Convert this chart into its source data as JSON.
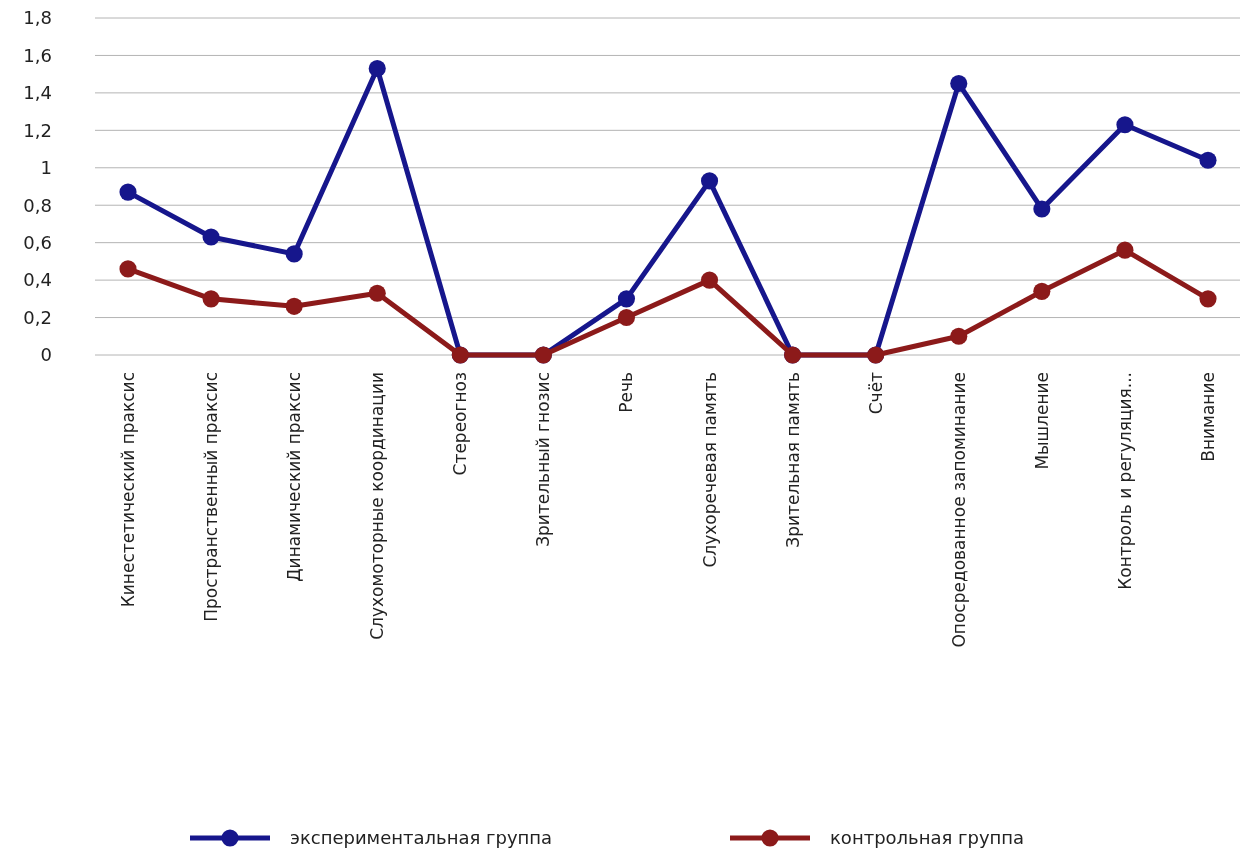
{
  "chart_data": {
    "type": "line",
    "categories": [
      "Кинестетический праксис",
      "Пространственный праксис",
      "Динамический праксис",
      "Слухомоторные координации",
      "Стереогноз",
      "Зрительный гнозис",
      "Речь",
      "Слухоречевая память",
      "Зрительная память",
      "Счёт",
      "Опосредованное запоминание",
      "Мышление",
      "Контроль и регуляция...",
      "Внимание"
    ],
    "series": [
      {
        "name": "экспериментальная группа",
        "color": "#16168c",
        "values": [
          0.87,
          0.63,
          0.54,
          1.53,
          0,
          0,
          0.3,
          0.93,
          0,
          0,
          1.45,
          0.78,
          1.23,
          1.04
        ]
      },
      {
        "name": "контрольная группа",
        "color": "#8c1a1a",
        "values": [
          0.46,
          0.3,
          0.26,
          0.33,
          0,
          0,
          0.2,
          0.4,
          0,
          0,
          0.1,
          0.34,
          0.56,
          0.3
        ]
      }
    ],
    "ylim": [
      0,
      1.8
    ],
    "yticks": [
      0,
      {
        "value": 0.2,
        "label": "0,2"
      },
      {
        "value": 0.4,
        "label": "0,4"
      },
      {
        "value": 0.6,
        "label": "0,6"
      },
      {
        "value": 0.8,
        "label": "0,8"
      },
      1,
      {
        "value": 1.2,
        "label": "1,2"
      },
      {
        "value": 1.4,
        "label": "1,4"
      },
      {
        "value": 1.6,
        "label": "1,6"
      },
      {
        "value": 1.8,
        "label": "1,8"
      }
    ],
    "grid": "y",
    "legend": "bottom",
    "marker": "circle",
    "line_style": "solid"
  }
}
